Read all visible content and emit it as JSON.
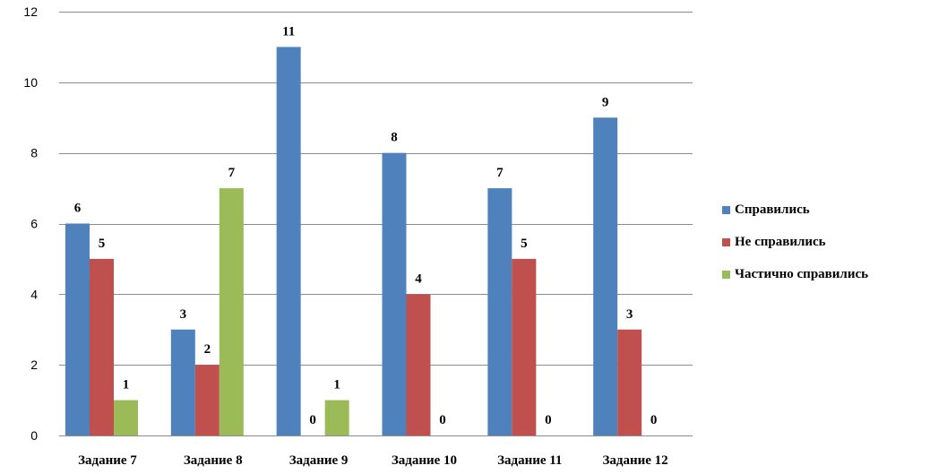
{
  "chart_data": {
    "type": "bar",
    "title": "",
    "xlabel": "",
    "ylabel": "",
    "ylim": [
      0,
      12
    ],
    "yticks": [
      0,
      2,
      4,
      6,
      8,
      10,
      12
    ],
    "grid": true,
    "legend_position": "right",
    "categories": [
      "Задание 7",
      "Задание 8",
      "Задание 9",
      "Задание 10",
      "Задание 11",
      "Задание 12"
    ],
    "series": [
      {
        "name": "Справились",
        "color": "#4F81BD",
        "values": [
          6,
          3,
          11,
          8,
          7,
          9
        ]
      },
      {
        "name": "Не справились",
        "color": "#C0504D",
        "values": [
          5,
          2,
          0,
          4,
          5,
          3
        ]
      },
      {
        "name": "Частично справились",
        "color": "#9BBB59",
        "values": [
          1,
          7,
          1,
          0,
          0,
          0
        ]
      }
    ]
  }
}
